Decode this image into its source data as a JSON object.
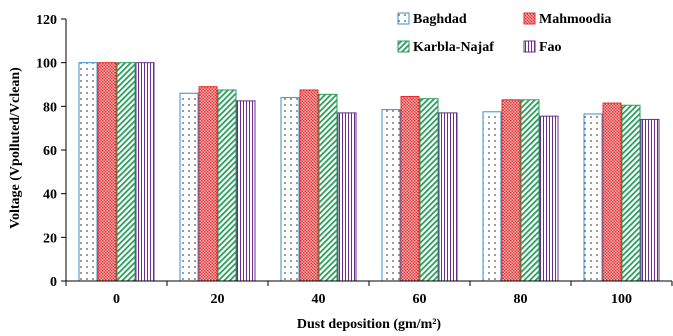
{
  "chart_data": {
    "type": "bar",
    "xlabel": "Dust deposition (gm/m²)",
    "ylabel": "Voltage (Vpolluted/Vclean)",
    "ylim": [
      0,
      120
    ],
    "yticks": [
      0,
      20,
      40,
      60,
      80,
      100,
      120
    ],
    "categories": [
      "0",
      "20",
      "40",
      "60",
      "80",
      "100"
    ],
    "series": [
      {
        "name": "Baghdad",
        "values": [
          100,
          86,
          84,
          78.5,
          77.5,
          76.5
        ],
        "color": "#3a8fd0",
        "pattern": "dots"
      },
      {
        "name": "Mahmoodia",
        "values": [
          100,
          89,
          87.5,
          84.5,
          83,
          81.5
        ],
        "color": "#e52b2b",
        "pattern": "checker"
      },
      {
        "name": "Karbla-Najaf",
        "values": [
          100,
          87.5,
          85.5,
          83.5,
          83,
          80.5
        ],
        "color": "#2a9d5c",
        "pattern": "diagonal"
      },
      {
        "name": "Fao",
        "values": [
          100,
          82.5,
          77,
          77,
          75.5,
          74
        ],
        "color": "#6b2d8c",
        "pattern": "vertical"
      }
    ],
    "legend": "top-right",
    "grid": false
  }
}
